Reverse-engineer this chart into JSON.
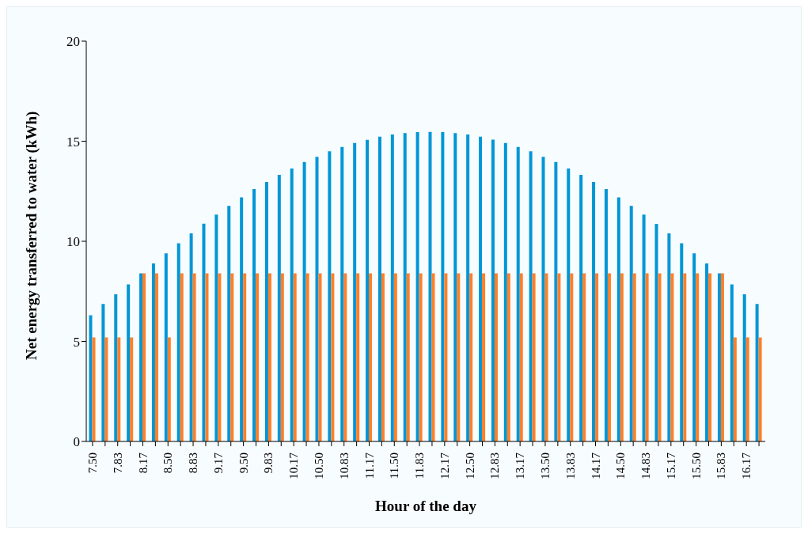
{
  "chart_data": {
    "type": "bar",
    "xlabel": "Hour of the day",
    "ylabel": "Net energy transferred to water  (kWh)",
    "categories": [
      "7.50",
      null,
      "7.83",
      null,
      "8.17",
      null,
      "8.50",
      null,
      "8.83",
      null,
      "9.17",
      null,
      "9.50",
      null,
      "9.83",
      null,
      "10.17",
      null,
      "10.50",
      null,
      "10.83",
      null,
      "11.17",
      null,
      "11.50",
      null,
      "11.83",
      null,
      "12.17",
      null,
      "12.50",
      null,
      "12.83",
      null,
      "13.17",
      null,
      "13.50",
      null,
      "13.83",
      null,
      "14.17",
      null,
      "14.50",
      null,
      "14.83",
      null,
      "15.17",
      null,
      "15.50",
      null,
      "15.83",
      null,
      "16.17",
      null
    ],
    "series": [
      {
        "color": "#0096d6",
        "values": [
          6.3,
          6.87,
          7.35,
          7.85,
          8.4,
          8.89,
          9.4,
          9.9,
          10.4,
          10.88,
          11.33,
          11.77,
          12.19,
          12.61,
          12.96,
          13.32,
          13.64,
          13.96,
          14.22,
          14.5,
          14.71,
          14.91,
          15.07,
          15.23,
          15.34,
          15.41,
          15.45,
          15.46,
          15.45,
          15.41,
          15.34,
          15.23,
          15.08,
          14.91,
          14.71,
          14.5,
          14.22,
          13.96,
          13.64,
          13.32,
          12.96,
          12.61,
          12.19,
          11.77,
          11.33,
          10.87,
          10.4,
          9.9,
          9.4,
          8.89,
          8.4,
          7.85,
          7.35,
          6.87
        ]
      },
      {
        "color": "#ff7f27",
        "values": [
          5.2,
          5.2,
          5.2,
          5.2,
          8.4,
          8.4,
          5.2,
          8.4,
          8.4,
          8.4,
          8.4,
          8.4,
          8.4,
          8.4,
          8.4,
          8.4,
          8.4,
          8.4,
          8.4,
          8.4,
          8.4,
          8.4,
          8.4,
          8.4,
          8.4,
          8.4,
          8.4,
          8.4,
          8.4,
          8.4,
          8.4,
          8.4,
          8.4,
          8.4,
          8.4,
          8.4,
          8.4,
          8.4,
          8.4,
          8.4,
          8.4,
          8.4,
          8.4,
          8.4,
          8.4,
          8.4,
          8.4,
          8.4,
          8.4,
          8.4,
          8.4,
          5.2,
          5.2,
          5.2
        ]
      }
    ],
    "ylim": [
      0,
      20
    ],
    "yticks": [
      0,
      5,
      10,
      15,
      20
    ],
    "grid": false,
    "legend": false
  }
}
